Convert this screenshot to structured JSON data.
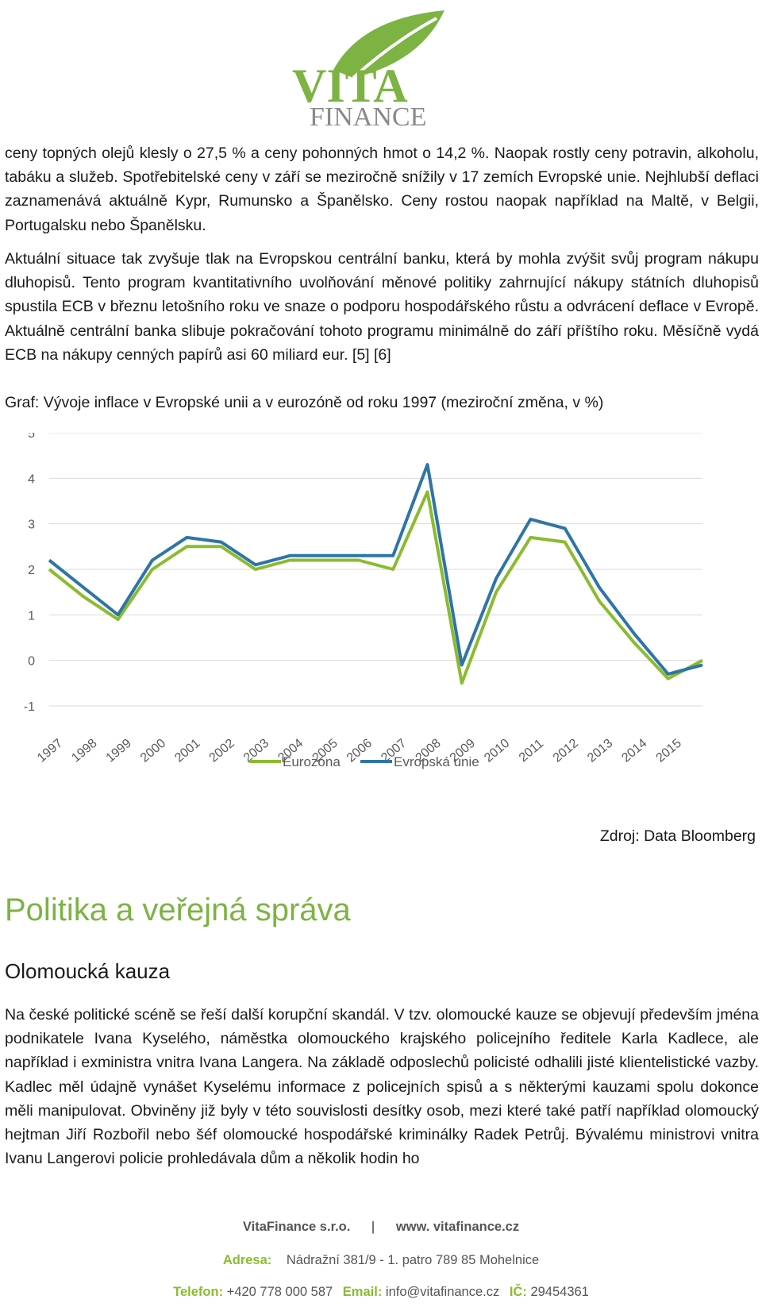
{
  "logo": {
    "line1": "VITA",
    "line2": "FINANCE",
    "leaf_color": "#7cb342",
    "text_color": "#8a8a8a"
  },
  "paragraphs": [
    "ceny topných olejů klesly o 27,5 % a ceny pohonných hmot o 14,2 %. Naopak rostly ceny potravin, alkoholu, tabáku a služeb. Spotřebitelské ceny v září se meziročně snížily v 17 zemích Evropské unie. Nejhlubší deflaci zaznamenává aktuálně Kypr, Rumunsko a Španělsko. Ceny rostou naopak například na Maltě, v Belgii, Portugalsku nebo Španělsku.",
    "Aktuální situace tak zvyšuje tlak na Evropskou centrální banku, která by mohla zvýšit svůj program nákupu dluhopisů. Tento program kvantitativního uvolňování měnové politiky zahrnující nákupy státních dluhopisů spustila ECB v březnu letošního roku ve snaze o podporu hospodářského růstu a odvrácení deflace v Evropě. Aktuálně centrální banka slibuje pokračování tohoto programu minimálně do září příštího roku. Měsíčně vydá ECB na nákupy cenných papírů asi 60 miliard eur. [5] [6]"
  ],
  "chart_caption": "Graf: Vývoje inflace v Evropské unii a v eurozóně od roku 1997 (meziroční změna, v %)",
  "chart_data": {
    "type": "line",
    "x": [
      "1997",
      "1998",
      "1999",
      "2000",
      "2001",
      "2002",
      "2003",
      "2004",
      "2005",
      "2006",
      "2007",
      "2008",
      "2009",
      "2010",
      "2011",
      "2012",
      "2013",
      "2014",
      "2015",
      "2015.8"
    ],
    "series": [
      {
        "name": "Eurozóna",
        "color": "#8bbb2f",
        "values": [
          2.0,
          1.4,
          0.9,
          2.0,
          2.5,
          2.5,
          2.0,
          2.2,
          2.2,
          2.2,
          2.0,
          3.7,
          -0.5,
          1.5,
          2.7,
          2.6,
          1.3,
          0.4,
          -0.4,
          0.0
        ]
      },
      {
        "name": "Evropská unie",
        "color": "#2e75a6",
        "values": [
          2.2,
          1.6,
          1.0,
          2.2,
          2.7,
          2.6,
          2.1,
          2.3,
          2.3,
          2.3,
          2.3,
          4.3,
          -0.1,
          1.8,
          3.1,
          2.9,
          1.6,
          0.6,
          -0.3,
          -0.1
        ]
      }
    ],
    "ylim": [
      -1,
      5
    ],
    "yticks": [
      "5",
      "4",
      "3",
      "2",
      "1",
      "0",
      "-1"
    ],
    "xticks": [
      "1997",
      "1998",
      "1999",
      "2000",
      "2001",
      "2002",
      "2003",
      "2004",
      "2005",
      "2006",
      "2007",
      "2008",
      "2009",
      "2010",
      "2011",
      "2012",
      "2013",
      "2014",
      "2015"
    ],
    "grid": true,
    "legend": "bottom"
  },
  "source": "Zdroj: Data Bloomberg",
  "section_title": "Politika a veřejná správa",
  "subsection_title": "Olomoucká kauza",
  "paragraph3": "Na české politické scéně se řeší další korupční skandál. V tzv. olomoucké kauze se objevují především jména podnikatele Ivana Kyselého, náměstka olomouckého krajského policejního ředitele Karla Kadlece, ale například i exministra vnitra Ivana Langera. Na základě odposlechů policisté odhalili jisté klientelistické vazby. Kadlec měl údajně vynášet Kyselému informace z policejních spisů a s některými kauzami spolu dokonce měli manipulovat. Obviněny již byly v této souvislosti desítky osob, mezi které také patří například olomoucký hejtman Jiří Rozbořil nebo šéf olomoucké hospodářské kriminálky Radek Petrůj. Bývalému ministrovi vnitra Ivanu Langerovi policie prohledávala dům a několik hodin ho",
  "footer": {
    "company": "VitaFinance s.r.o.",
    "web": "www. vitafinance.cz",
    "address_label": "Adresa:",
    "address": "Nádražní 381/9 - 1. patro 789 85 Mohelnice",
    "phone_label": "Telefon:",
    "phone": "+420 778 000 587",
    "email_label": "Email:",
    "email": "info@vitafinance.cz",
    "ic_label": "IČ:",
    "ic": "29454361"
  }
}
